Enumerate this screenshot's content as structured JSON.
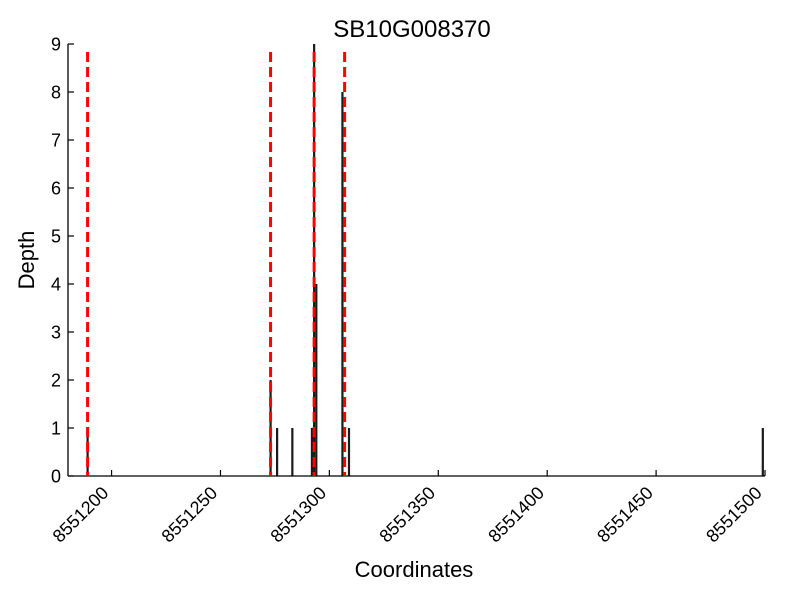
{
  "chart_data": {
    "type": "bar",
    "title": "SB10G008370",
    "xlabel": "Coordinates",
    "ylabel": "Depth",
    "xlim": [
      8551180,
      8551500
    ],
    "ylim": [
      0,
      9
    ],
    "xticks": [
      8551200,
      8551250,
      8551300,
      8551350,
      8551400,
      8551450,
      8551500
    ],
    "yticks": [
      0,
      1,
      2,
      3,
      4,
      5,
      6,
      7,
      8,
      9
    ],
    "grid": false,
    "bar_width": 1,
    "bars": [
      {
        "x": 8551189,
        "y": 1
      },
      {
        "x": 8551273,
        "y": 2
      },
      {
        "x": 8551276,
        "y": 1
      },
      {
        "x": 8551283,
        "y": 1
      },
      {
        "x": 8551292,
        "y": 1
      },
      {
        "x": 8551293,
        "y": 9
      },
      {
        "x": 8551294,
        "y": 4
      },
      {
        "x": 8551306,
        "y": 8
      },
      {
        "x": 8551309,
        "y": 1
      },
      {
        "x": 8551499,
        "y": 1
      }
    ],
    "bar_color": "#1a1a1a",
    "markers": {
      "style": "dashed",
      "color": "#ff0000",
      "x": [
        8551189,
        8551273,
        8551293,
        8551307
      ]
    }
  }
}
